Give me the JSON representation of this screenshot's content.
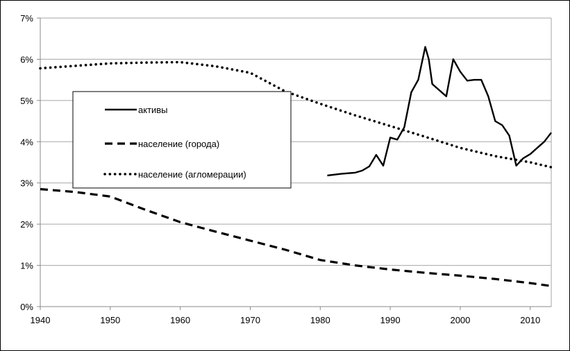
{
  "chart_data": {
    "type": "line",
    "title": "",
    "xlabel": "",
    "ylabel": "",
    "xlim": [
      1940,
      2013
    ],
    "ylim": [
      0,
      7
    ],
    "x_ticks": [
      1940,
      1950,
      1960,
      1970,
      1980,
      1990,
      2000,
      2010
    ],
    "y_ticks": [
      "0%",
      "1%",
      "2%",
      "3%",
      "4%",
      "5%",
      "6%",
      "7%"
    ],
    "grid": "horizontal",
    "legend_position": "center-left",
    "series": [
      {
        "name": "активы",
        "style": "solid",
        "color": "#000000",
        "x": [
          1981,
          1983,
          1985,
          1986,
          1987,
          1988,
          1989,
          1990,
          1991,
          1992,
          1993,
          1994,
          1995,
          1995.5,
          1996,
          1997,
          1998,
          1999,
          2000,
          2001,
          2002,
          2003,
          2004,
          2005,
          2006,
          2007,
          2008,
          2009,
          2010,
          2011,
          2012,
          2013
        ],
        "y": [
          3.18,
          3.22,
          3.25,
          3.3,
          3.4,
          3.68,
          3.42,
          4.1,
          4.05,
          4.35,
          5.2,
          5.5,
          6.3,
          6.0,
          5.4,
          5.25,
          5.1,
          6.0,
          5.7,
          5.48,
          5.5,
          5.5,
          5.1,
          4.5,
          4.4,
          4.15,
          3.42,
          3.6,
          3.7,
          3.85,
          4.0,
          4.22
        ]
      },
      {
        "name": "население (города)",
        "style": "dashed",
        "color": "#000000",
        "x": [
          1940,
          1945,
          1950,
          1955,
          1960,
          1965,
          1970,
          1975,
          1980,
          1985,
          1990,
          1995,
          2000,
          2005,
          2010,
          2013
        ],
        "y": [
          2.85,
          2.78,
          2.67,
          2.35,
          2.05,
          1.82,
          1.6,
          1.38,
          1.13,
          1.0,
          0.9,
          0.82,
          0.75,
          0.67,
          0.57,
          0.5
        ]
      },
      {
        "name": "население (агломерации)",
        "style": "dotted",
        "color": "#000000",
        "x": [
          1940,
          1945,
          1950,
          1955,
          1960,
          1965,
          1970,
          1975,
          1980,
          1985,
          1990,
          1995,
          2000,
          2005,
          2010,
          2013
        ],
        "y": [
          5.78,
          5.84,
          5.9,
          5.92,
          5.93,
          5.83,
          5.67,
          5.22,
          4.92,
          4.64,
          4.38,
          4.12,
          3.85,
          3.65,
          3.5,
          3.38
        ]
      }
    ]
  }
}
